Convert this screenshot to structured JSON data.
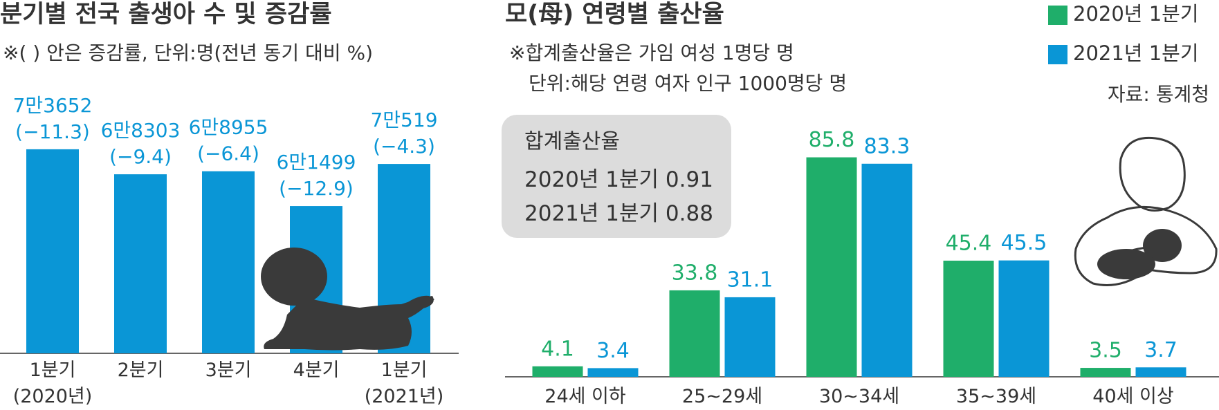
{
  "chart_data": [
    {
      "type": "bar",
      "title": "분기별 전국 출생아 수 및 증감률",
      "subtitle": "※( ) 안은 증감률, 단위:명(전년 동기 대비 %)",
      "categories": [
        "1분기\n(2020년)",
        "2분기",
        "3분기",
        "4분기",
        "1분기\n(2021년)"
      ],
      "values": [
        73652,
        68303,
        68955,
        61499,
        70519
      ],
      "value_labels": [
        "7만3652",
        "6만8303",
        "6만8955",
        "6만1499",
        "7만519"
      ],
      "changes": [
        -11.3,
        -9.4,
        -6.4,
        -12.9,
        -4.3
      ],
      "change_labels": [
        "(−11.3)",
        "(−9.4)",
        "(−6.4)",
        "(−12.9)",
        "(−4.3)"
      ],
      "color": "#0a96d6",
      "ylim": [
        30000,
        80000
      ]
    },
    {
      "type": "grouped-bar",
      "title": "모(母) 연령별 출산율",
      "notes": [
        "※합계출산율은 가임 여성 1명당 명",
        "단위:해당 연령 여자 인구 1000명당 명"
      ],
      "source": "자료: 통계청",
      "summary": {
        "title": "합계출산율",
        "rows": [
          {
            "name": "2020년 1분기",
            "value": 0.91
          },
          {
            "name": "2021년 1분기",
            "value": 0.88
          }
        ]
      },
      "categories": [
        "24세 이하",
        "25~29세",
        "30~34세",
        "35~39세",
        "40세 이상"
      ],
      "series": [
        {
          "name": "2020년 1분기",
          "color": "#1fae6a",
          "values": [
            4.1,
            33.8,
            85.8,
            45.4,
            3.5
          ]
        },
        {
          "name": "2021년 1분기",
          "color": "#0a96d6",
          "values": [
            3.4,
            31.1,
            83.3,
            45.5,
            3.7
          ]
        }
      ],
      "ylim": [
        0,
        90
      ],
      "legend": "top-right"
    }
  ]
}
